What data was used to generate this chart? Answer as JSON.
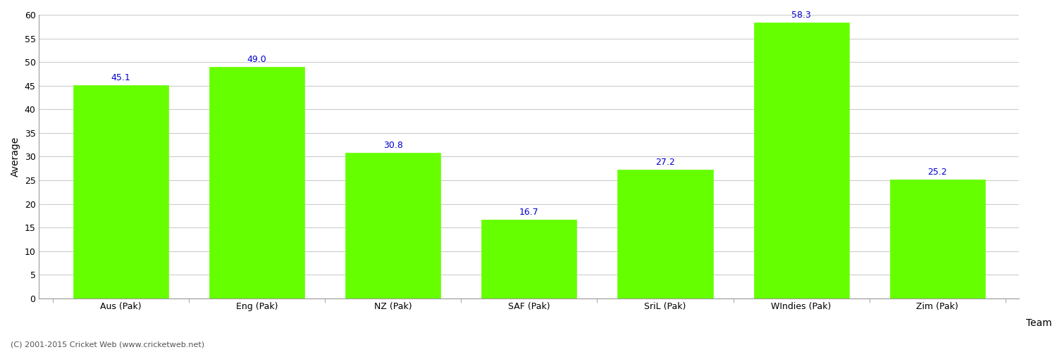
{
  "categories": [
    "Aus (Pak)",
    "Eng (Pak)",
    "NZ (Pak)",
    "SAF (Pak)",
    "SriL (Pak)",
    "WIndies (Pak)",
    "Zim (Pak)"
  ],
  "values": [
    45.1,
    49.0,
    30.8,
    16.7,
    27.2,
    58.3,
    25.2
  ],
  "bar_color": "#66ff00",
  "bar_edge_color": "#66ff00",
  "label_color": "#0000cc",
  "xlabel": "Team",
  "ylabel": "Average",
  "ylim": [
    0,
    60
  ],
  "yticks": [
    0,
    5,
    10,
    15,
    20,
    25,
    30,
    35,
    40,
    45,
    50,
    55,
    60
  ],
  "grid_color": "#cccccc",
  "background_color": "#ffffff",
  "fig_width": 15.0,
  "fig_height": 5.0,
  "footnote": "(C) 2001-2015 Cricket Web (www.cricketweb.net)",
  "label_fontsize": 9,
  "axis_label_fontsize": 10,
  "tick_fontsize": 9,
  "footnote_fontsize": 8
}
